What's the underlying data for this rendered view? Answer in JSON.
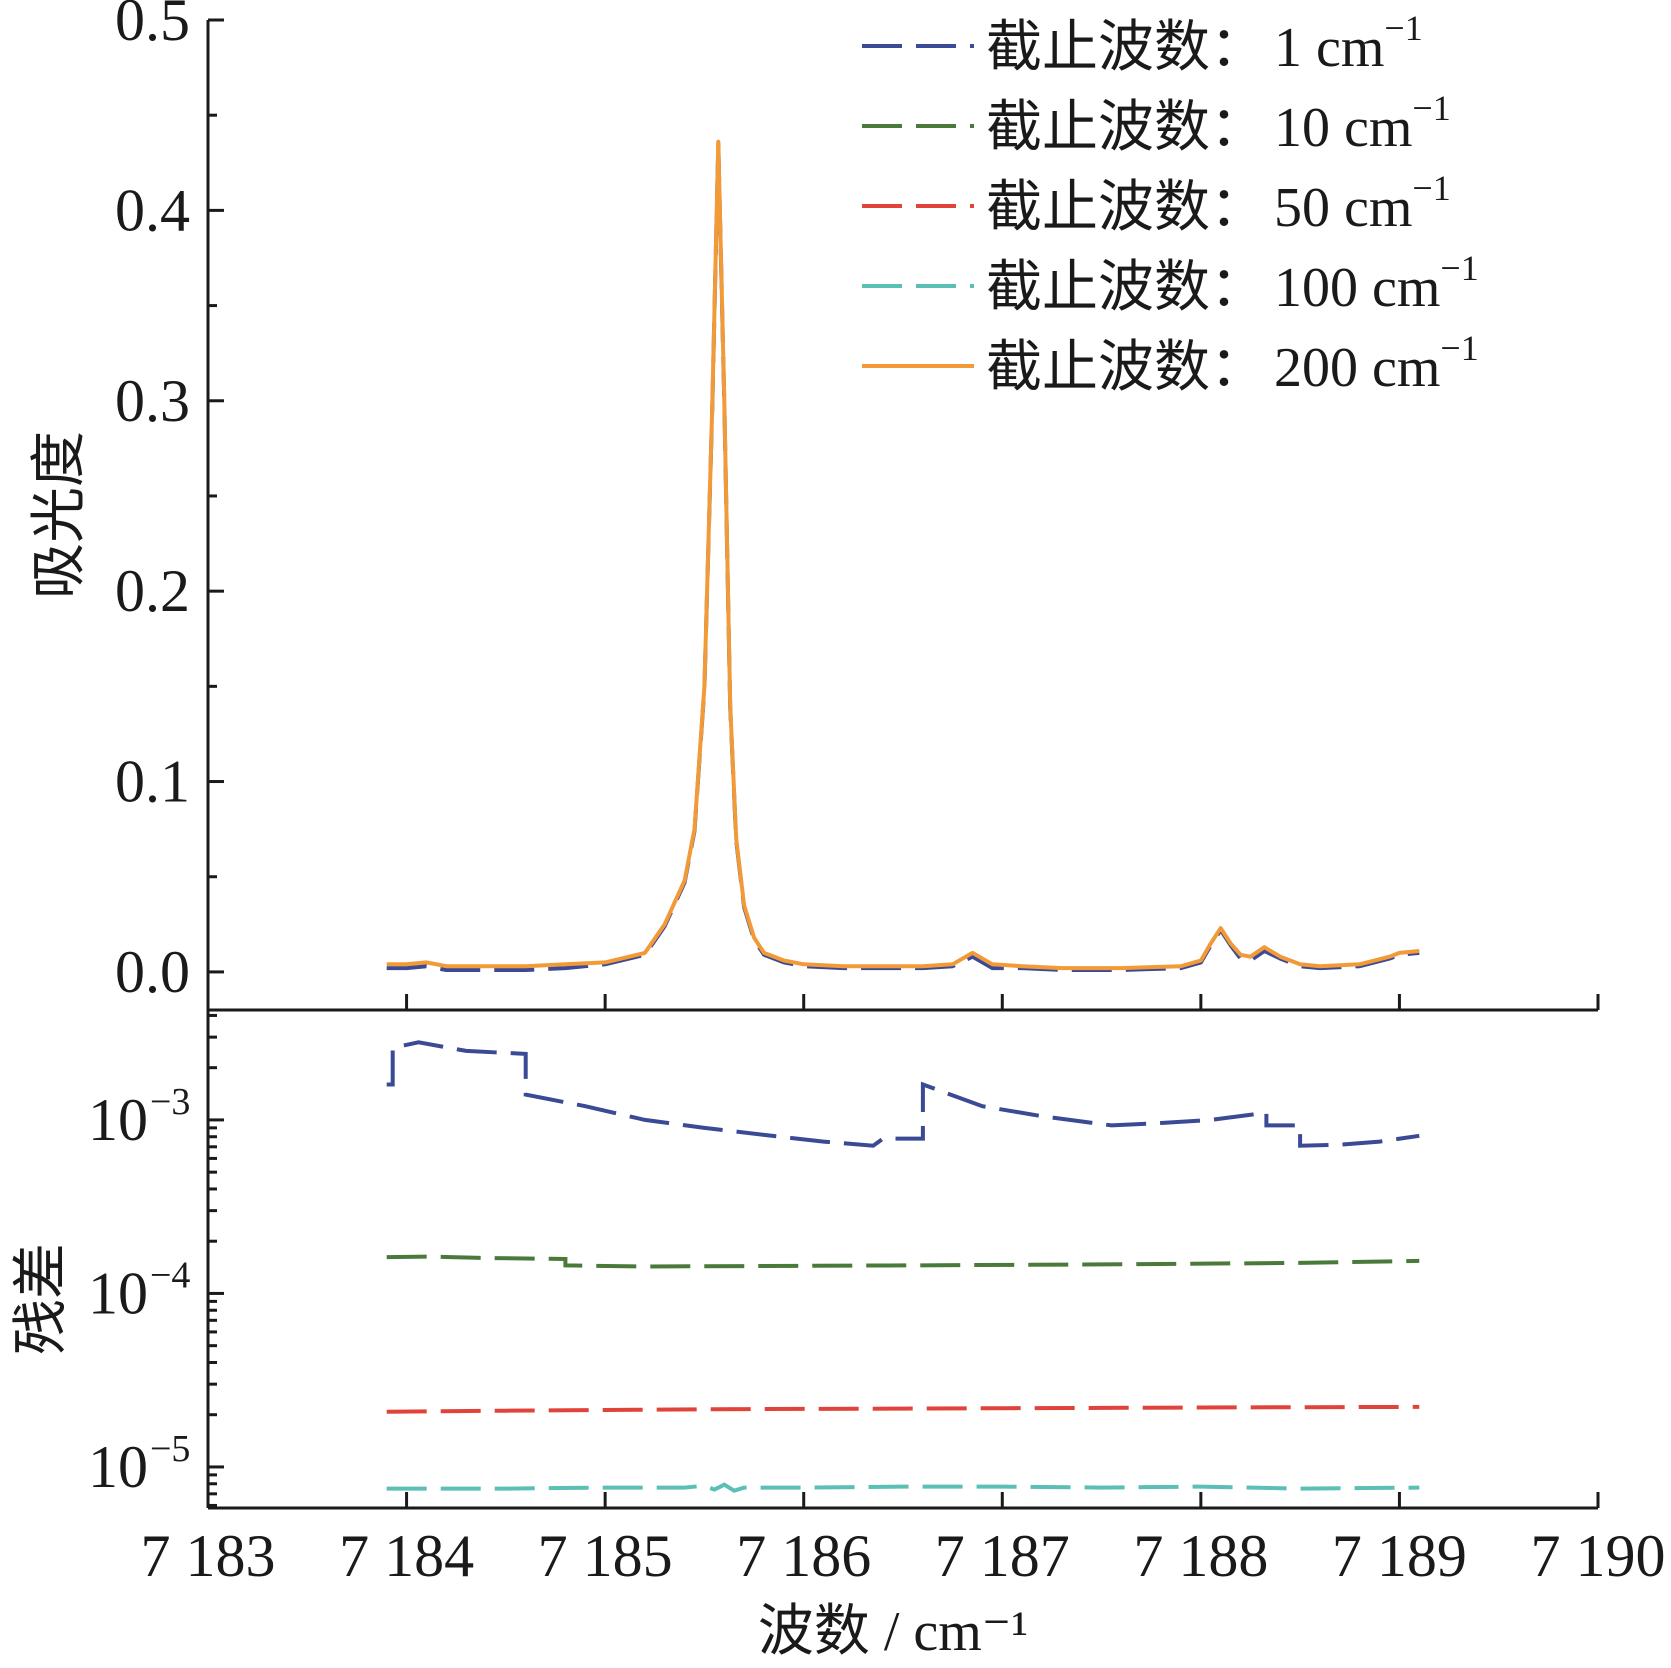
{
  "chart_data": [
    {
      "type": "line",
      "panel": "top",
      "ylabel": "吸光度",
      "xlim": [
        7183,
        7190
      ],
      "ylim": [
        -0.02,
        0.5
      ],
      "y_ticks": [
        0.0,
        0.1,
        0.2,
        0.3,
        0.4,
        0.5
      ],
      "y_tick_labels": [
        "0.0",
        "0.1",
        "0.2",
        "0.3",
        "0.4",
        "0.5"
      ],
      "legend": {
        "placement": "top-right",
        "entries": [
          {
            "prefix": "截止波数：",
            "value": "1",
            "unit": " cm",
            "sup": "−1",
            "color": "#3b4a94",
            "dash": true
          },
          {
            "prefix": "截止波数：",
            "value": "10",
            "unit": " cm",
            "sup": "−1",
            "color": "#4a7a3a",
            "dash": true
          },
          {
            "prefix": "截止波数：",
            "value": "50",
            "unit": " cm",
            "sup": "−1",
            "color": "#e0433a",
            "dash": true
          },
          {
            "prefix": "截止波数：",
            "value": "100",
            "unit": " cm",
            "sup": "−1",
            "color": "#5bbfb5",
            "dash": true
          },
          {
            "prefix": "截止波数：",
            "value": "200",
            "unit": " cm",
            "sup": "−1",
            "color": "#f29a38",
            "dash": false
          }
        ]
      },
      "series": [
        {
          "name": "截止波数：200 cm⁻¹",
          "color": "#f29a38",
          "x": [
            7183.9,
            7184.0,
            7184.1,
            7184.2,
            7184.4,
            7184.6,
            7184.8,
            7185.0,
            7185.2,
            7185.3,
            7185.4,
            7185.45,
            7185.5,
            7185.54,
            7185.57,
            7185.6,
            7185.63,
            7185.66,
            7185.7,
            7185.75,
            7185.8,
            7185.9,
            7186.0,
            7186.2,
            7186.4,
            7186.6,
            7186.75,
            7186.85,
            7186.95,
            7187.1,
            7187.3,
            7187.6,
            7187.9,
            7188.0,
            7188.05,
            7188.1,
            7188.15,
            7188.2,
            7188.25,
            7188.32,
            7188.4,
            7188.5,
            7188.6,
            7188.8,
            7188.95,
            7189.0,
            7189.1
          ],
          "y": [
            0.004,
            0.004,
            0.005,
            0.003,
            0.003,
            0.003,
            0.004,
            0.005,
            0.01,
            0.025,
            0.048,
            0.075,
            0.15,
            0.3,
            0.436,
            0.3,
            0.14,
            0.07,
            0.035,
            0.018,
            0.01,
            0.006,
            0.004,
            0.003,
            0.003,
            0.003,
            0.004,
            0.01,
            0.004,
            0.003,
            0.002,
            0.002,
            0.003,
            0.006,
            0.015,
            0.023,
            0.015,
            0.009,
            0.008,
            0.013,
            0.008,
            0.004,
            0.003,
            0.004,
            0.008,
            0.01,
            0.011
          ]
        },
        {
          "name": "截止波数：1 cm⁻¹",
          "color": "#3b4a94",
          "x": [
            7183.9,
            7184.0,
            7184.1,
            7184.2,
            7184.4,
            7184.6,
            7184.8,
            7185.0,
            7185.2,
            7185.3,
            7185.4,
            7185.45,
            7185.5,
            7185.54,
            7185.57,
            7185.6,
            7185.63,
            7185.66,
            7185.7,
            7185.75,
            7185.8,
            7185.9,
            7186.0,
            7186.2,
            7186.4,
            7186.6,
            7186.75,
            7186.85,
            7186.95,
            7187.1,
            7187.3,
            7187.6,
            7187.9,
            7188.0,
            7188.05,
            7188.1,
            7188.15,
            7188.2,
            7188.25,
            7188.32,
            7188.4,
            7188.5,
            7188.6,
            7188.8,
            7188.95,
            7189.0,
            7189.1
          ],
          "y": [
            0.002,
            0.002,
            0.003,
            0.001,
            0.001,
            0.001,
            0.002,
            0.004,
            0.009,
            0.024,
            0.047,
            0.074,
            0.149,
            0.299,
            0.435,
            0.299,
            0.139,
            0.069,
            0.034,
            0.017,
            0.009,
            0.005,
            0.003,
            0.002,
            0.002,
            0.002,
            0.003,
            0.008,
            0.002,
            0.002,
            0.001,
            0.001,
            0.002,
            0.005,
            0.014,
            0.022,
            0.014,
            0.007,
            0.006,
            0.011,
            0.007,
            0.003,
            0.002,
            0.003,
            0.007,
            0.009,
            0.01
          ]
        }
      ]
    },
    {
      "type": "line",
      "panel": "bottom",
      "ylabel": "残差",
      "xlabel": "波数 / cm⁻¹",
      "yscale": "log",
      "xlim": [
        7183,
        7190
      ],
      "ylim": [
        5.8e-06,
        0.0043
      ],
      "x_ticks": [
        7183,
        7184,
        7185,
        7186,
        7187,
        7188,
        7189,
        7190
      ],
      "x_tick_labels": [
        "7 183",
        "7 184",
        "7 185",
        "7 186",
        "7 187",
        "7 188",
        "7 189",
        "7 190"
      ],
      "y_ticks": [
        0.001,
        0.0001,
        1e-05
      ],
      "y_tick_labels": [
        {
          "base": "10",
          "exp": "−3"
        },
        {
          "base": "10",
          "exp": "−4"
        },
        {
          "base": "10",
          "exp": "−5"
        }
      ],
      "series": [
        {
          "name": "截止波数：1 cm⁻¹",
          "color": "#3b4a94",
          "x": [
            7183.9,
            7183.93,
            7183.93,
            7184.06,
            7184.3,
            7184.6,
            7184.6,
            7184.9,
            7185.2,
            7185.5,
            7185.8,
            7186.1,
            7186.35,
            7186.4,
            7186.6,
            7186.6,
            7186.9,
            7187.2,
            7187.55,
            7187.8,
            7188.05,
            7188.33,
            7188.33,
            7188.5,
            7188.5,
            7188.7,
            7188.9,
            7189.1
          ],
          "y": [
            0.0016,
            0.0016,
            0.0026,
            0.0028,
            0.0025,
            0.0024,
            0.0014,
            0.0012,
            0.001,
            0.0009,
            0.00082,
            0.00075,
            0.00071,
            0.00078,
            0.00078,
            0.0016,
            0.0012,
            0.00105,
            0.00093,
            0.00096,
            0.001,
            0.0011,
            0.00093,
            0.00093,
            0.00071,
            0.00072,
            0.00075,
            0.00081
          ]
        },
        {
          "name": "截止波数：10 cm⁻¹",
          "color": "#4a7a3a",
          "x": [
            7183.9,
            7184.1,
            7184.4,
            7184.8,
            7184.8,
            7185.2,
            7185.8,
            7186.5,
            7187.5,
            7188.5,
            7189.1
          ],
          "y": [
            0.000162,
            0.000163,
            0.00016,
            0.000158,
            0.000145,
            0.000143,
            0.000144,
            0.000145,
            0.000147,
            0.00015,
            0.000154
          ]
        },
        {
          "name": "截止波数：50 cm⁻¹",
          "color": "#e0433a",
          "x": [
            7183.9,
            7184.5,
            7185.0,
            7185.5,
            7186.0,
            7186.5,
            7187.0,
            7187.5,
            7188.0,
            7188.5,
            7189.1
          ],
          "y": [
            2.08e-05,
            2.11e-05,
            2.13e-05,
            2.15e-05,
            2.16e-05,
            2.17e-05,
            2.18e-05,
            2.19e-05,
            2.2e-05,
            2.21e-05,
            2.22e-05
          ]
        },
        {
          "name": "截止波数：100 cm⁻¹",
          "color": "#5bbfb5",
          "x": [
            7183.9,
            7184.5,
            7185.0,
            7185.4,
            7185.5,
            7185.55,
            7185.6,
            7185.65,
            7185.7,
            7186.0,
            7186.5,
            7187.0,
            7187.5,
            7188.0,
            7188.5,
            7189.1
          ],
          "y": [
            7.5e-06,
            7.5e-06,
            7.6e-06,
            7.6e-06,
            7.8e-06,
            7.4e-06,
            7.9e-06,
            7.3e-06,
            7.6e-06,
            7.6e-06,
            7.7e-06,
            7.7e-06,
            7.6e-06,
            7.7e-06,
            7.5e-06,
            7.6e-06
          ]
        }
      ]
    }
  ]
}
